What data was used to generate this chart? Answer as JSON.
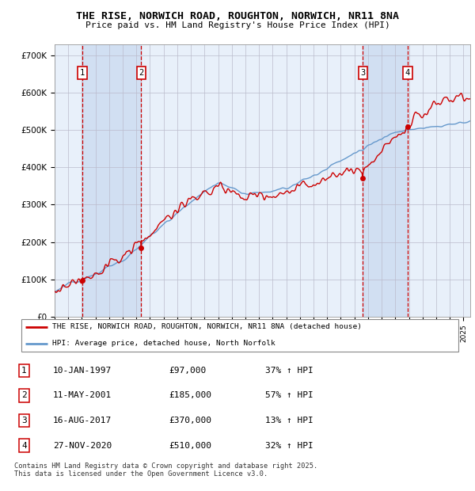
{
  "title": "THE RISE, NORWICH ROAD, ROUGHTON, NORWICH, NR11 8NA",
  "subtitle": "Price paid vs. HM Land Registry's House Price Index (HPI)",
  "ylabel_ticks": [
    "£0",
    "£100K",
    "£200K",
    "£300K",
    "£400K",
    "£500K",
    "£600K",
    "£700K"
  ],
  "ytick_vals": [
    0,
    100000,
    200000,
    300000,
    400000,
    500000,
    600000,
    700000
  ],
  "ylim": [
    0,
    730000
  ],
  "xlim_start": 1995.25,
  "xlim_end": 2025.5,
  "sale_dates": [
    1997.03,
    2001.36,
    2017.62,
    2020.91
  ],
  "sale_prices": [
    97000,
    185000,
    370000,
    510000
  ],
  "sale_labels": [
    "1",
    "2",
    "3",
    "4"
  ],
  "legend_line1": "THE RISE, NORWICH ROAD, ROUGHTON, NORWICH, NR11 8NA (detached house)",
  "legend_line2": "HPI: Average price, detached house, North Norfolk",
  "table_data": [
    [
      "1",
      "10-JAN-1997",
      "£97,000",
      "37% ↑ HPI"
    ],
    [
      "2",
      "11-MAY-2001",
      "£185,000",
      "57% ↑ HPI"
    ],
    [
      "3",
      "16-AUG-2017",
      "£370,000",
      "13% ↑ HPI"
    ],
    [
      "4",
      "27-NOV-2020",
      "£510,000",
      "32% ↑ HPI"
    ]
  ],
  "footer": "Contains HM Land Registry data © Crown copyright and database right 2025.\nThis data is licensed under the Open Government Licence v3.0.",
  "red_color": "#cc0000",
  "blue_color": "#6699cc",
  "blue_fill": "#dde8f5",
  "bg_color": "#e8f0fa",
  "grid_color": "#bbbbcc",
  "dashed_color": "#cc0000",
  "hpi_seed": 12345,
  "prop_seed": 67890
}
